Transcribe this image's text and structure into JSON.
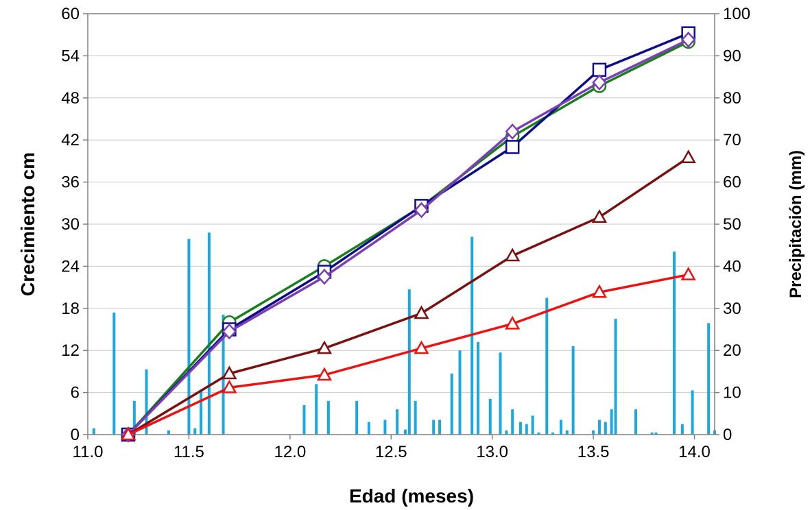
{
  "chart_data": {
    "type": "line",
    "xlabel": "Edad (meses)",
    "ylabel": "Crecimiento cm",
    "y2label": "Precipitación (mm)",
    "xlim": [
      11.0,
      14.1
    ],
    "ylim": [
      0,
      60
    ],
    "y2lim": [
      0,
      100
    ],
    "xticks": [
      "11.0",
      "11.5",
      "12.0",
      "12.5",
      "13.0",
      "13.5",
      "14.0"
    ],
    "yticks": [
      "0",
      "6",
      "12",
      "18",
      "24",
      "30",
      "36",
      "42",
      "48",
      "54",
      "60"
    ],
    "y2ticks": [
      "0",
      "10",
      "20",
      "30",
      "40",
      "50",
      "60",
      "70",
      "80",
      "90",
      "100"
    ],
    "grid": true,
    "legend": "none",
    "series": [
      {
        "color": "#1a7f1a",
        "marker": "circle",
        "x": [
          11.2,
          11.7,
          12.17,
          12.65,
          13.1,
          13.53,
          13.97
        ],
        "values": [
          0,
          16.0,
          24.0,
          32.5,
          42.5,
          49.7,
          56.0
        ]
      },
      {
        "color": "#0d0d8a",
        "marker": "square",
        "x": [
          11.2,
          11.7,
          12.17,
          12.65,
          13.1,
          13.53,
          13.97
        ],
        "values": [
          0,
          15.0,
          23.2,
          32.6,
          41.0,
          52.0,
          57.2
        ]
      },
      {
        "color": "#7b3fb5",
        "marker": "diamond",
        "x": [
          11.2,
          11.7,
          12.17,
          12.65,
          13.1,
          13.53,
          13.97
        ],
        "values": [
          0,
          14.7,
          22.5,
          32.0,
          43.2,
          50.2,
          56.3
        ]
      },
      {
        "color": "#7a1010",
        "marker": "triangle",
        "x": [
          11.2,
          11.7,
          12.17,
          12.65,
          13.1,
          13.53,
          13.97
        ],
        "values": [
          0,
          8.7,
          12.3,
          17.3,
          25.5,
          31.0,
          39.5
        ]
      },
      {
        "color": "#ee1111",
        "marker": "triangle",
        "x": [
          11.2,
          11.7,
          12.17,
          12.65,
          13.1,
          13.53,
          13.97
        ],
        "values": [
          0,
          6.7,
          8.5,
          12.3,
          15.8,
          20.3,
          22.8
        ]
      }
    ],
    "precipitation": {
      "color": "#1ba8e0",
      "x": [
        11.03,
        11.13,
        11.23,
        11.29,
        11.4,
        11.5,
        11.53,
        11.56,
        11.6,
        11.67,
        12.07,
        12.13,
        12.19,
        12.33,
        12.39,
        12.47,
        12.53,
        12.57,
        12.59,
        12.62,
        12.71,
        12.74,
        12.8,
        12.84,
        12.9,
        12.93,
        12.99,
        13.04,
        13.07,
        13.1,
        13.14,
        13.17,
        13.2,
        13.23,
        13.27,
        13.3,
        13.34,
        13.37,
        13.4,
        13.5,
        13.53,
        13.56,
        13.59,
        13.61,
        13.71,
        13.79,
        13.81,
        13.9,
        13.94,
        13.99,
        14.07,
        14.1
      ],
      "values": [
        1.5,
        29,
        8,
        15.5,
        1,
        46.5,
        1.5,
        10.5,
        48,
        28.5,
        7,
        12,
        8,
        8,
        3,
        3.5,
        6,
        1.2,
        34.5,
        8,
        3.5,
        3.5,
        14.5,
        20,
        47,
        22,
        8.5,
        19.5,
        1,
        6,
        3,
        2.5,
        4.5,
        0.5,
        32.5,
        0.5,
        3.5,
        1,
        21,
        1,
        3.5,
        3,
        6,
        27.5,
        6,
        0.5,
        0.5,
        43.5,
        2.5,
        10.5,
        26.5,
        1
      ]
    }
  }
}
